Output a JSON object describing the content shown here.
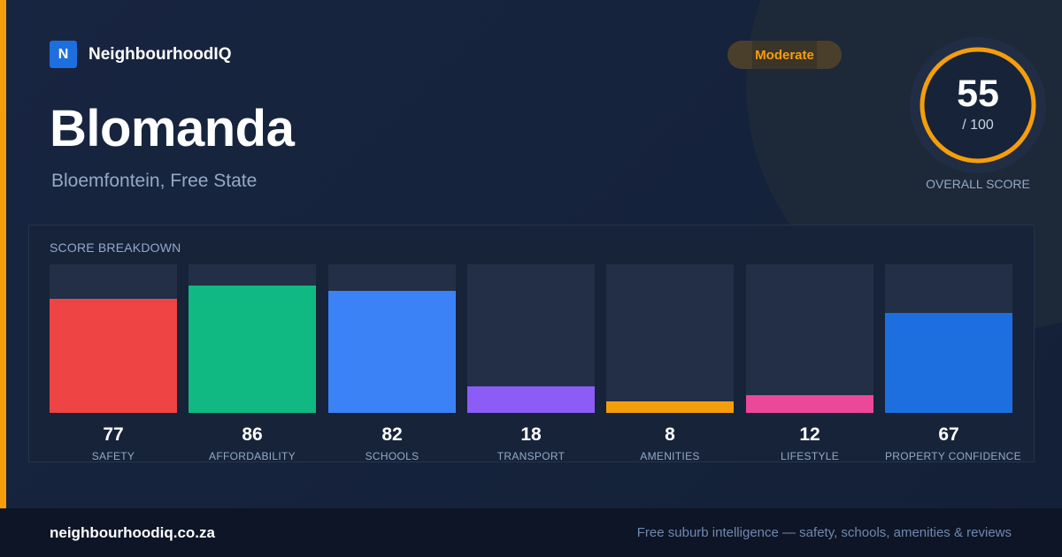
{
  "brand": {
    "logo_letter": "N",
    "name": "NeighbourhoodIQ"
  },
  "suburb": {
    "name": "Blomanda",
    "location": "Bloemfontein, Free State"
  },
  "rating_badge": {
    "label": "Moderate",
    "color": "#f59e0b"
  },
  "overall": {
    "score": "55",
    "max_label": "/ 100",
    "score_value": 55,
    "max_value": 100,
    "caption": "OVERALL SCORE",
    "ring_color": "#f59e0b"
  },
  "breakdown": {
    "title": "SCORE BREAKDOWN",
    "items": [
      {
        "label": "SAFETY",
        "score": "77",
        "value": 77,
        "color": "#ef4444"
      },
      {
        "label": "AFFORDABILITY",
        "score": "86",
        "value": 86,
        "color": "#10b981"
      },
      {
        "label": "SCHOOLS",
        "score": "82",
        "value": 82,
        "color": "#3b82f6"
      },
      {
        "label": "TRANSPORT",
        "score": "18",
        "value": 18,
        "color": "#8b5cf6"
      },
      {
        "label": "AMENITIES",
        "score": "8",
        "value": 8,
        "color": "#f59e0b"
      },
      {
        "label": "LIFESTYLE",
        "score": "12",
        "value": 12,
        "color": "#ec4899"
      },
      {
        "label": "PROPERTY CONFIDENCE",
        "score": "67",
        "value": 67,
        "color": "#1d6fe0"
      }
    ]
  },
  "footer": {
    "domain": "neighbourhoodiq.co.za",
    "tagline": "Free suburb intelligence — safety, schools, amenities & reviews"
  }
}
